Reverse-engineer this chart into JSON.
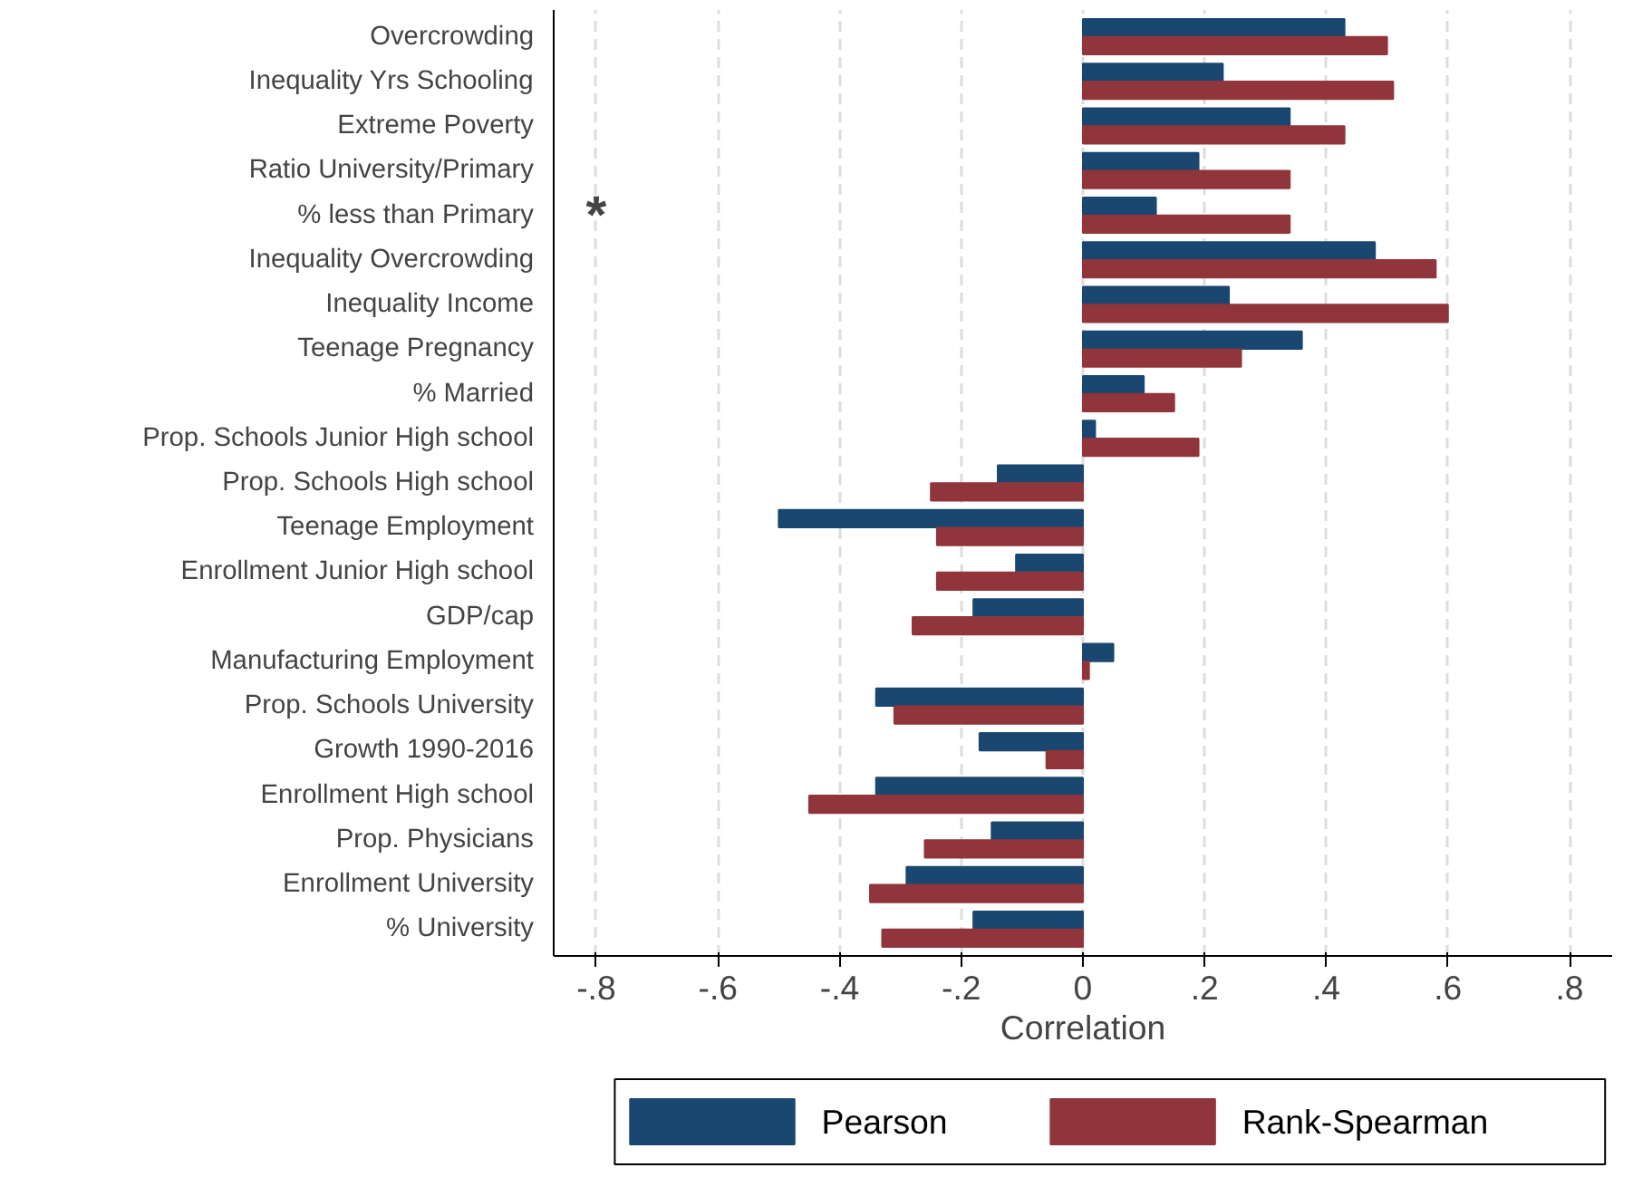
{
  "chart_data": {
    "type": "bar",
    "orientation": "horizontal",
    "xlabel": "Correlation",
    "categories": [
      "Overcrowding",
      "Inequality Yrs Schooling",
      "Extreme Poverty",
      "Ratio University/Primary",
      "% less than Primary",
      "Inequality Overcrowding",
      "Inequality Income",
      "Teenage Pregnancy",
      "% Married",
      "Prop. Schools Junior High school",
      "Prop. Schools High school",
      "Teenage Employment",
      "Enrollment Junior High school",
      "GDP/cap",
      "Manufacturing Employment",
      "Prop. Schools University",
      "Growth 1990-2016",
      "Enrollment High school",
      "Prop. Physicians",
      "Enrollment University",
      "% University"
    ],
    "series": [
      {
        "name": "Pearson",
        "color": "#1a476f",
        "values": [
          0.43,
          0.23,
          0.34,
          0.19,
          0.12,
          0.48,
          0.24,
          0.36,
          0.1,
          0.02,
          -0.14,
          -0.5,
          -0.11,
          -0.18,
          0.05,
          -0.34,
          -0.17,
          -0.34,
          -0.15,
          -0.29,
          -0.18
        ]
      },
      {
        "name": "Rank-Spearman",
        "color": "#90353b",
        "values": [
          0.5,
          0.51,
          0.43,
          0.34,
          0.34,
          0.58,
          0.6,
          0.26,
          0.15,
          0.19,
          -0.25,
          -0.24,
          -0.24,
          -0.28,
          0.01,
          -0.31,
          -0.06,
          -0.45,
          -0.26,
          -0.35,
          -0.33
        ]
      }
    ],
    "xlim": [
      -0.87,
      0.87
    ],
    "xticks": [
      {
        "value": -0.8,
        "label": "-.8"
      },
      {
        "value": -0.6,
        "label": "-.6"
      },
      {
        "value": -0.4,
        "label": "-.4"
      },
      {
        "value": -0.2,
        "label": "-.2"
      },
      0,
      {
        "value": 0.2,
        "label": ".2"
      },
      {
        "value": 0.4,
        "label": ".4"
      },
      {
        "value": 0.6,
        "label": ".6"
      },
      {
        "value": 0.8,
        "label": ".8"
      }
    ],
    "grid": "x",
    "legend": "bottom",
    "annotations": [
      "*"
    ]
  }
}
